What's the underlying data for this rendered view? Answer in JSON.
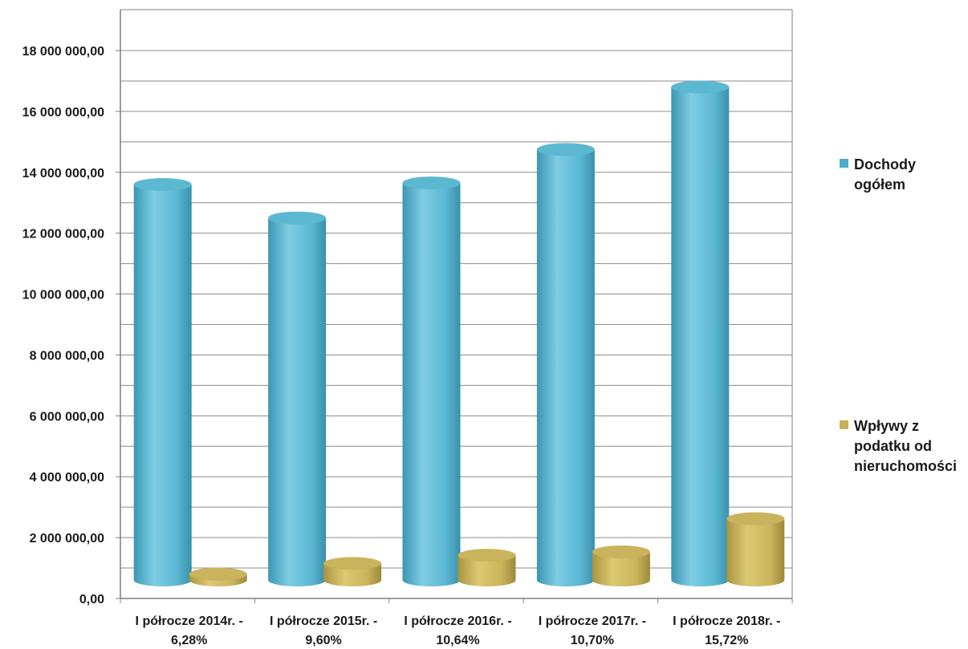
{
  "chart_data": {
    "type": "bar",
    "style": "3d-cylinder",
    "categories": [
      "I półrocze 2014r. - 6,28%",
      "I półrocze 2015r. - 9,60%",
      "I półrocze 2016r. - 10,64%",
      "I półrocze 2017r. - 10,70%",
      "I półrocze 2018r. - 15,72%"
    ],
    "category_lines": [
      [
        "I półrocze 2014r. -",
        "6,28%"
      ],
      [
        "I półrocze 2015r. -",
        "9,60%"
      ],
      [
        "I półrocze 2016r. -",
        "10,64%"
      ],
      [
        "I półrocze 2017r. -",
        "10,70%"
      ],
      [
        "I półrocze 2018r. -",
        "15,72%"
      ]
    ],
    "series": [
      {
        "name": "Dochody ogółem",
        "name_lines": [
          "Dochody",
          "ogółem"
        ],
        "color": "#4bacc6",
        "values": [
          13600000,
          12500000,
          13650000,
          14750000,
          16800000
        ]
      },
      {
        "name": "Wpływy z podatku od nieruchomości",
        "name_lines": [
          "Wpływy z",
          "podatku od",
          "nieruchomości"
        ],
        "color": "#c6b25a",
        "values": [
          800000,
          1150000,
          1420000,
          1530000,
          2620000
        ]
      }
    ],
    "ylim": [
      0,
      18000000
    ],
    "yticks": [
      0,
      2000000,
      4000000,
      6000000,
      8000000,
      10000000,
      12000000,
      14000000,
      16000000,
      18000000
    ],
    "ytick_labels": [
      "0,00",
      "2 000 000,00",
      "4 000 000,00",
      "6 000 000,00",
      "8 000 000,00",
      "10 000 000,00",
      "12 000 000,00",
      "14 000 000,00",
      "16 000 000,00",
      "18 000 000,00"
    ],
    "title": "",
    "xlabel": "",
    "ylabel": "",
    "grid": true,
    "legend_position": "right"
  }
}
